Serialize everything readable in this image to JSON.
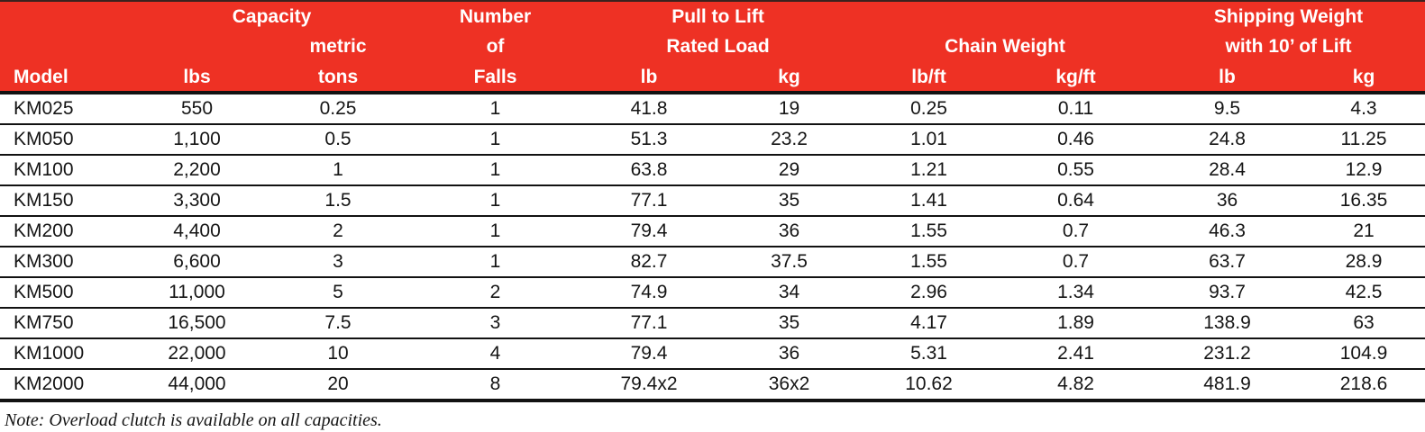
{
  "accent_color": "#ee3124",
  "line_color": "#121212",
  "table": {
    "header": {
      "group_capacity": "Capacity",
      "capacity_metric_line": "metric",
      "number_line1": "Number",
      "number_line2": "of",
      "number_line3": "Falls",
      "pull_line1": "Pull to Lift",
      "pull_line2": "Rated Load",
      "group_chain": "Chain Weight",
      "shipping_line1": "Shipping Weight",
      "shipping_line2": "with 10’ of Lift",
      "col_model": "Model",
      "col_lbs": "lbs",
      "col_tons": "tons",
      "col_pull_lb": "lb",
      "col_pull_kg": "kg",
      "col_chain_lb_ft": "lb/ft",
      "col_chain_kg_ft": "kg/ft",
      "col_ship_lb": "lb",
      "col_ship_kg": "kg"
    },
    "rows": [
      [
        "KM025",
        "550",
        "0.25",
        "1",
        "41.8",
        "19",
        "0.25",
        "0.11",
        "9.5",
        "4.3"
      ],
      [
        "KM050",
        "1,100",
        "0.5",
        "1",
        "51.3",
        "23.2",
        "1.01",
        "0.46",
        "24.8",
        "11.25"
      ],
      [
        "KM100",
        "2,200",
        "1",
        "1",
        "63.8",
        "29",
        "1.21",
        "0.55",
        "28.4",
        "12.9"
      ],
      [
        "KM150",
        "3,300",
        "1.5",
        "1",
        "77.1",
        "35",
        "1.41",
        "0.64",
        "36",
        "16.35"
      ],
      [
        "KM200",
        "4,400",
        "2",
        "1",
        "79.4",
        "36",
        "1.55",
        "0.7",
        "46.3",
        "21"
      ],
      [
        "KM300",
        "6,600",
        "3",
        "1",
        "82.7",
        "37.5",
        "1.55",
        "0.7",
        "63.7",
        "28.9"
      ],
      [
        "KM500",
        "11,000",
        "5",
        "2",
        "74.9",
        "34",
        "2.96",
        "1.34",
        "93.7",
        "42.5"
      ],
      [
        "KM750",
        "16,500",
        "7.5",
        "3",
        "77.1",
        "35",
        "4.17",
        "1.89",
        "138.9",
        "63"
      ],
      [
        "KM1000",
        "22,000",
        "10",
        "4",
        "79.4",
        "36",
        "5.31",
        "2.41",
        "231.2",
        "104.9"
      ],
      [
        "KM2000",
        "44,000",
        "20",
        "8",
        "79.4x2",
        "36x2",
        "10.62",
        "4.82",
        "481.9",
        "218.6"
      ]
    ]
  },
  "note": "Note: Overload clutch is available on all capacities."
}
